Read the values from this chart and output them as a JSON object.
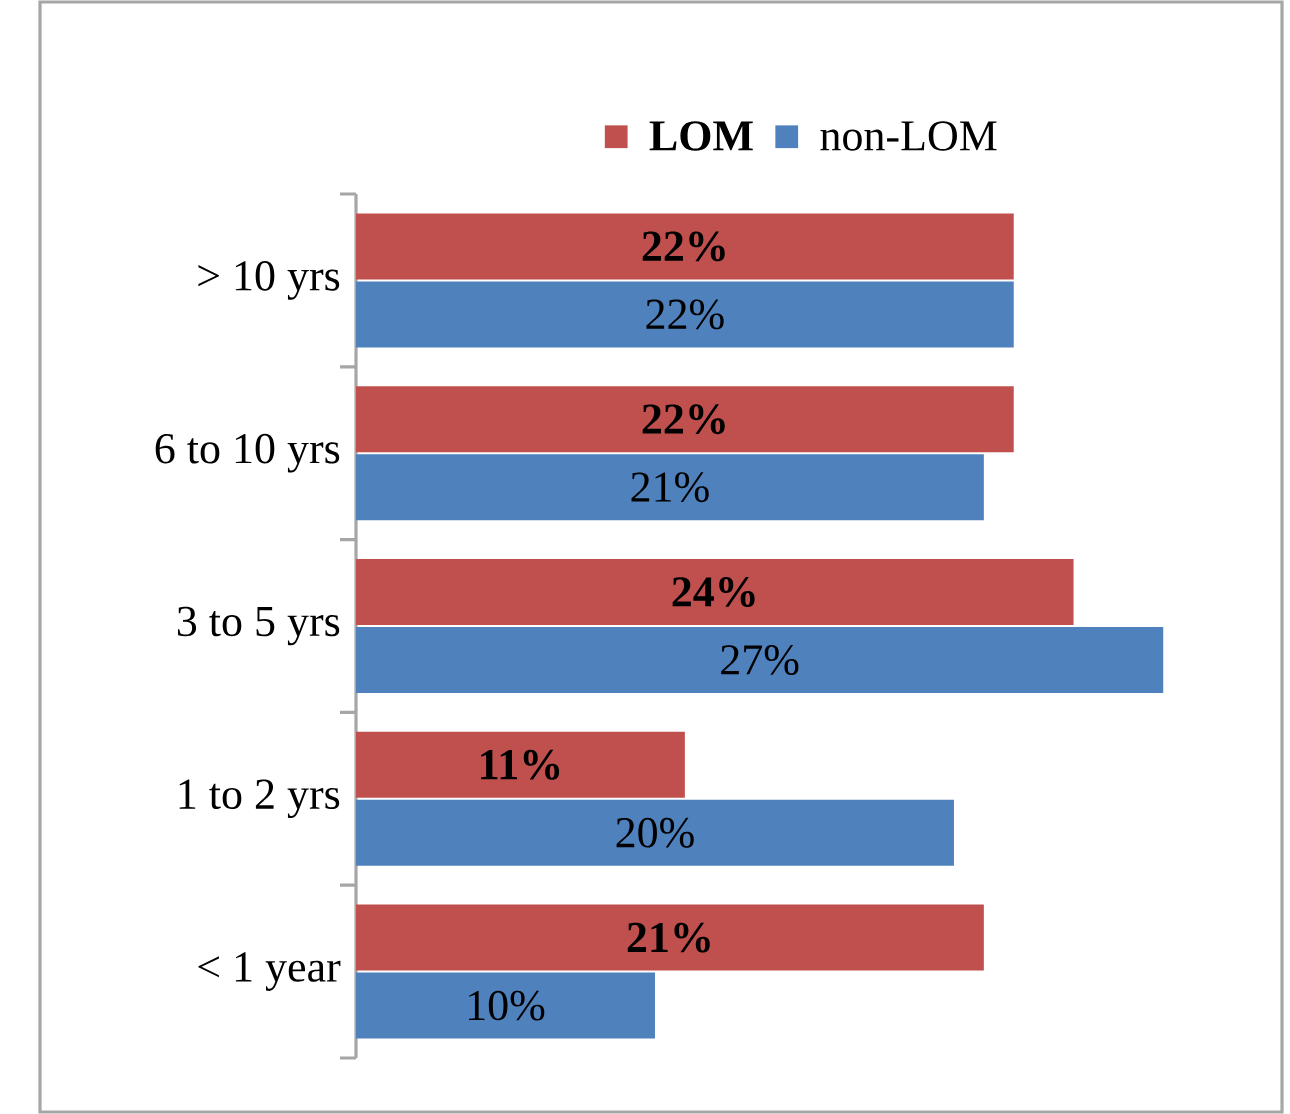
{
  "chart_data": {
    "type": "bar",
    "orientation": "horizontal",
    "categories": [
      "> 10 yrs",
      "6 to 10 yrs",
      "3 to 5 yrs",
      "1 to 2 yrs",
      "< 1 year"
    ],
    "series": [
      {
        "name": "LOM",
        "color": "#c0504d",
        "values": [
          22,
          22,
          24,
          11,
          21
        ],
        "value_labels": [
          "22%",
          "22%",
          "24%",
          "11%",
          "21%"
        ]
      },
      {
        "name": "non-LOM",
        "color": "#4f81bd",
        "values": [
          22,
          21,
          27,
          20,
          10
        ],
        "value_labels": [
          "22%",
          "21%",
          "27%",
          "20%",
          "10%"
        ]
      }
    ],
    "tick_labels": "y",
    "legend": "top"
  }
}
